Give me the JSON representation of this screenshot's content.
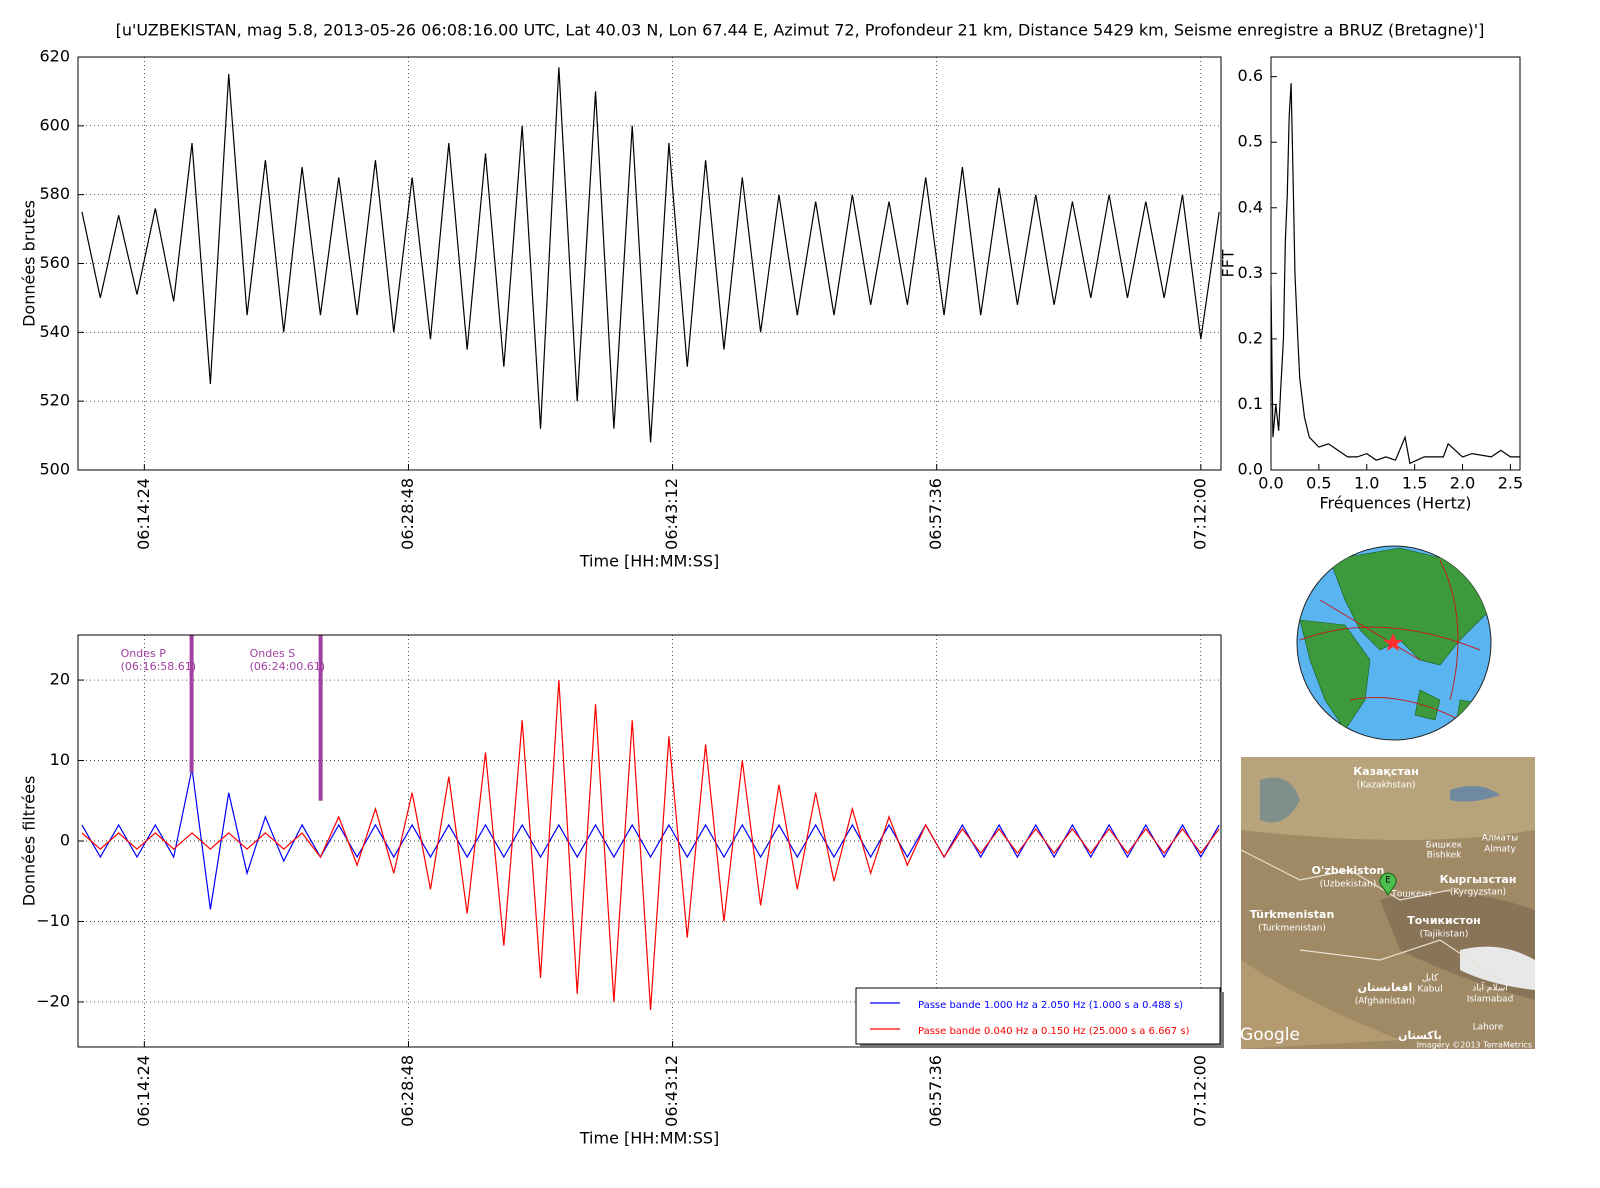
{
  "title": "[u'UZBEKISTAN, mag 5.8, 2013-05-26 06:08:16.00 UTC, Lat 40.03 N, Lon 67.44 E, Azimut 72, Profondeur 21 km, Distance 5429 km, Seisme enregistre a BRUZ (Bretagne)']",
  "chart_data": [
    {
      "type": "line",
      "xlabel": "Time [HH:MM:SS]",
      "ylabel": "Données brutes",
      "grid": true,
      "xlim": [
        "06:10:47",
        "07:13:06"
      ],
      "xticks": [
        "06:14:24",
        "06:28:48",
        "06:43:12",
        "06:57:36",
        "07:12:00"
      ],
      "ylim": [
        500,
        620
      ],
      "yticks": [
        500,
        520,
        540,
        560,
        580,
        600,
        620
      ],
      "x": [
        "06:11:00",
        "06:12:00",
        "06:13:00",
        "06:14:00",
        "06:15:00",
        "06:16:00",
        "06:17:00",
        "06:18:00",
        "06:19:00",
        "06:20:00",
        "06:21:00",
        "06:22:00",
        "06:23:00",
        "06:24:00",
        "06:25:00",
        "06:26:00",
        "06:27:00",
        "06:28:00",
        "06:29:00",
        "06:30:00",
        "06:31:00",
        "06:32:00",
        "06:33:00",
        "06:34:00",
        "06:35:00",
        "06:36:00",
        "06:37:00",
        "06:38:00",
        "06:39:00",
        "06:40:00",
        "06:41:00",
        "06:42:00",
        "06:43:00",
        "06:44:00",
        "06:45:00",
        "06:46:00",
        "06:47:00",
        "06:48:00",
        "06:49:00",
        "06:50:00",
        "06:51:00",
        "06:52:00",
        "06:53:00",
        "06:54:00",
        "06:55:00",
        "06:56:00",
        "06:57:00",
        "06:58:00",
        "06:59:00",
        "07:00:00",
        "07:01:00",
        "07:02:00",
        "07:03:00",
        "07:04:00",
        "07:05:00",
        "07:06:00",
        "07:07:00",
        "07:08:00",
        "07:09:00",
        "07:10:00",
        "07:11:00",
        "07:12:00",
        "07:13:00"
      ],
      "series": [
        {
          "color": "#000000",
          "values": [
            575,
            550,
            574,
            551,
            576,
            549,
            595,
            525,
            615,
            545,
            590,
            540,
            588,
            545,
            585,
            545,
            590,
            540,
            585,
            538,
            595,
            535,
            592,
            530,
            600,
            512,
            617,
            520,
            610,
            512,
            600,
            508,
            595,
            530,
            590,
            535,
            585,
            540,
            580,
            545,
            578,
            545,
            580,
            548,
            578,
            548,
            585,
            545,
            588,
            545,
            582,
            548,
            580,
            548,
            578,
            550,
            580,
            550,
            578,
            550,
            580,
            538,
            575
          ]
        }
      ]
    },
    {
      "type": "line",
      "xlabel": "Fréquences (Hertz)",
      "ylabel": "FFT",
      "grid": false,
      "xlim": [
        0,
        2.6
      ],
      "xticks": [
        {
          "value": 0,
          "label": "0.0"
        },
        0.5,
        {
          "value": 1,
          "label": "1.0"
        },
        1.5,
        {
          "value": 2,
          "label": "2.0"
        },
        2.5
      ],
      "ylim": [
        0,
        0.63
      ],
      "yticks": [
        {
          "value": 0,
          "label": "0.0"
        },
        0.1,
        0.2,
        0.3,
        0.4,
        0.5,
        0.6
      ],
      "x": [
        0,
        0.02,
        0.05,
        0.08,
        0.1,
        0.13,
        0.15,
        0.17,
        0.19,
        0.21,
        0.23,
        0.25,
        0.28,
        0.3,
        0.35,
        0.4,
        0.5,
        0.6,
        0.7,
        0.8,
        0.9,
        1.0,
        1.1,
        1.2,
        1.3,
        1.4,
        1.45,
        1.6,
        1.8,
        1.85,
        2.0,
        2.1,
        2.3,
        2.4,
        2.5,
        2.6
      ],
      "series": [
        {
          "color": "#000000",
          "values": [
            0.28,
            0.05,
            0.1,
            0.06,
            0.12,
            0.2,
            0.35,
            0.42,
            0.54,
            0.59,
            0.45,
            0.3,
            0.2,
            0.14,
            0.08,
            0.05,
            0.035,
            0.04,
            0.03,
            0.02,
            0.02,
            0.025,
            0.015,
            0.02,
            0.015,
            0.05,
            0.01,
            0.02,
            0.02,
            0.04,
            0.02,
            0.025,
            0.02,
            0.03,
            0.02,
            0.02
          ]
        }
      ]
    },
    {
      "type": "line",
      "xlabel": "Time [HH:MM:SS]",
      "ylabel": "Données filtrées",
      "grid": true,
      "legend": "lower right",
      "xlim": [
        "06:10:47",
        "07:13:06"
      ],
      "xticks": [
        "06:14:24",
        "06:28:48",
        "06:43:12",
        "06:57:36",
        "07:12:00"
      ],
      "ylim": [
        -25.6,
        25.6
      ],
      "yticks": [
        {
          "value": -20,
          "label": "−20"
        },
        {
          "value": -10,
          "label": "−10"
        },
        0,
        10,
        20
      ],
      "x": [
        "06:11:00",
        "06:12:00",
        "06:13:00",
        "06:14:00",
        "06:15:00",
        "06:16:00",
        "06:17:00",
        "06:18:00",
        "06:19:00",
        "06:20:00",
        "06:21:00",
        "06:22:00",
        "06:23:00",
        "06:24:00",
        "06:25:00",
        "06:26:00",
        "06:27:00",
        "06:28:00",
        "06:29:00",
        "06:30:00",
        "06:31:00",
        "06:32:00",
        "06:33:00",
        "06:34:00",
        "06:35:00",
        "06:36:00",
        "06:37:00",
        "06:38:00",
        "06:39:00",
        "06:40:00",
        "06:41:00",
        "06:42:00",
        "06:43:00",
        "06:44:00",
        "06:45:00",
        "06:46:00",
        "06:47:00",
        "06:48:00",
        "06:49:00",
        "06:50:00",
        "06:51:00",
        "06:52:00",
        "06:53:00",
        "06:54:00",
        "06:55:00",
        "06:56:00",
        "06:57:00",
        "06:58:00",
        "06:59:00",
        "07:00:00",
        "07:01:00",
        "07:02:00",
        "07:03:00",
        "07:04:00",
        "07:05:00",
        "07:06:00",
        "07:07:00",
        "07:08:00",
        "07:09:00",
        "07:10:00",
        "07:11:00",
        "07:12:00",
        "07:13:00"
      ],
      "series": [
        {
          "name": "Passe bande 1.000 Hz a 2.050 Hz (1.000 s a 0.488 s)",
          "color": "#0000ff",
          "values": [
            2,
            -2,
            2,
            -2,
            2,
            -2,
            9,
            -8.5,
            6,
            -4,
            3,
            -2.5,
            2,
            -2,
            2,
            -2,
            2,
            -2,
            2,
            -2,
            2,
            -2,
            2,
            -2,
            2,
            -2,
            2,
            -2,
            2,
            -2,
            2,
            -2,
            2,
            -2,
            2,
            -2,
            2,
            -2,
            2,
            -2,
            2,
            -2,
            2,
            -2,
            2,
            -2,
            2,
            -2,
            2,
            -2,
            2,
            -2,
            2,
            -2,
            2,
            -2,
            2,
            -2,
            2,
            -2,
            2,
            -2,
            2
          ]
        },
        {
          "name": "Passe bande 0.040 Hz a 0.150 Hz (25.000 s a 6.667 s)",
          "color": "#ff0000",
          "values": [
            1,
            -1,
            1,
            -1,
            1,
            -1,
            1,
            -1,
            1,
            -1,
            1,
            -1,
            1,
            -2,
            3,
            -3,
            4,
            -4,
            6,
            -6,
            8,
            -9,
            11,
            -13,
            15,
            -17,
            20,
            -19,
            17,
            -20,
            15,
            -21,
            13,
            -12,
            12,
            -10,
            10,
            -8,
            7,
            -6,
            6,
            -5,
            4,
            -4,
            3,
            -3,
            2,
            -2,
            1.5,
            -1.5,
            1.5,
            -1.5,
            1.5,
            -1.5,
            1.5,
            -1.5,
            1.5,
            -1.5,
            1.5,
            -1.5,
            1.5,
            -1.5,
            1.5
          ]
        }
      ],
      "markers": [
        {
          "label": "Ondes P",
          "time": {
            "value": "06:16:58.61",
            "label": "(06:16:58.61)"
          },
          "y_from": 8.5,
          "color": "#a040a0"
        },
        {
          "label": "Ondes S",
          "time": {
            "value": "06:24:00.61",
            "label": "(06:24:00.61)"
          },
          "y_from": 5,
          "color": "#a040a0"
        }
      ]
    }
  ],
  "map": {
    "labels": [
      "Казақстан",
      "(Kazakhstan)",
      "Бишкек",
      "Bishkek",
      "Алматы",
      "Almaty",
      "O'zbekiston",
      "(Uzbekistan)",
      "Тошкент",
      "Кыргызстан",
      "(Kyrgyzstan)",
      "Türkmenistan",
      "(Turkmenistan)",
      "Точикистон",
      "(Tajikistan)",
      "افغانستان",
      "(Afghanistan)",
      "کابل",
      "Kabul",
      "اسلام آباد",
      "Islamabad",
      "Lahore",
      "پاکستان",
      "Google",
      "Imagery ©2013 TerraMetrics",
      "E"
    ]
  }
}
